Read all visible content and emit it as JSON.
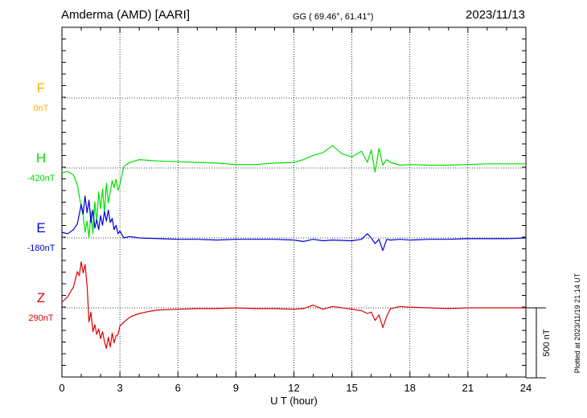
{
  "header": {
    "title": "Amderma (AMD)  [AARI]",
    "coords": "GG ( 69.46°,  61.41°)",
    "date": "2023/11/13"
  },
  "footer": {
    "plotted": "Plotted at 2023/11/19 21:14 UT"
  },
  "chart_data": {
    "type": "line",
    "xlabel": "U T (hour)",
    "xlim": [
      0,
      24
    ],
    "xticks": [
      "0",
      "3",
      "6",
      "9",
      "12",
      "15",
      "18",
      "21",
      "24"
    ],
    "grid": true,
    "scale_bar": "500 nT",
    "scale_nT": 500,
    "series": [
      {
        "name": "F",
        "baseline": "0nT",
        "color": "#f0b400",
        "x": [],
        "y": []
      },
      {
        "name": "H",
        "baseline": "-420nT",
        "color": "#00e000",
        "x": [
          0,
          0.3,
          0.6,
          0.8,
          1.0,
          1.1,
          1.2,
          1.3,
          1.4,
          1.5,
          1.6,
          1.7,
          1.8,
          1.9,
          2.0,
          2.1,
          2.2,
          2.3,
          2.4,
          2.5,
          2.6,
          2.7,
          2.8,
          2.9,
          3.0,
          3.2,
          3.5,
          4.0,
          5.0,
          6.0,
          7.0,
          8.0,
          9.0,
          10.0,
          11.0,
          12.0,
          12.5,
          13.0,
          13.5,
          14.0,
          14.5,
          15.0,
          15.5,
          15.8,
          16.0,
          16.2,
          16.4,
          16.6,
          16.8,
          17.0,
          17.5,
          18.0,
          19.0,
          20.0,
          21.0,
          22.0,
          23.0,
          24.0
        ],
        "y": [
          -35,
          -25,
          -50,
          -120,
          -280,
          -340,
          -460,
          -380,
          -500,
          -310,
          -470,
          -240,
          -390,
          -170,
          -290,
          -150,
          -320,
          -110,
          -250,
          -170,
          -90,
          -140,
          -80,
          -160,
          -120,
          10,
          40,
          60,
          50,
          45,
          40,
          35,
          25,
          25,
          35,
          40,
          60,
          90,
          110,
          160,
          100,
          80,
          120,
          40,
          130,
          -30,
          140,
          20,
          60,
          40,
          20,
          25,
          20,
          20,
          25,
          30,
          30,
          30
        ]
      },
      {
        "name": "E",
        "baseline": "-180nT",
        "color": "#0000e0",
        "x": [
          0,
          0.3,
          0.6,
          0.8,
          0.9,
          1.0,
          1.1,
          1.2,
          1.3,
          1.4,
          1.5,
          1.6,
          1.7,
          1.8,
          1.9,
          2.0,
          2.1,
          2.2,
          2.3,
          2.4,
          2.5,
          2.6,
          2.7,
          2.8,
          2.9,
          3.0,
          3.2,
          3.5,
          4.0,
          5.0,
          6.0,
          7.0,
          8.0,
          9.0,
          10.0,
          11.0,
          12.0,
          12.5,
          13.0,
          13.5,
          14.0,
          15.0,
          15.5,
          15.8,
          16.0,
          16.2,
          16.4,
          16.6,
          16.8,
          17.0,
          17.5,
          18.0,
          19.0,
          20.0,
          21.0,
          22.0,
          23.0,
          24.0
        ],
        "y": [
          40,
          30,
          60,
          100,
          170,
          240,
          170,
          300,
          180,
          270,
          110,
          200,
          70,
          130,
          60,
          160,
          90,
          190,
          120,
          200,
          110,
          140,
          60,
          90,
          30,
          50,
          0,
          10,
          0,
          -5,
          -10,
          -10,
          -15,
          -10,
          -10,
          -10,
          -15,
          -25,
          -10,
          -20,
          -15,
          -20,
          -10,
          30,
          0,
          -40,
          -10,
          -90,
          -10,
          -15,
          -10,
          -15,
          -10,
          -10,
          -5,
          -5,
          -5,
          0
        ]
      },
      {
        "name": "Z",
        "baseline": "290nT",
        "color": "#e00000",
        "x": [
          0,
          0.3,
          0.6,
          0.8,
          0.9,
          1.0,
          1.1,
          1.2,
          1.3,
          1.4,
          1.5,
          1.6,
          1.7,
          1.8,
          1.9,
          2.0,
          2.1,
          2.2,
          2.3,
          2.4,
          2.5,
          2.6,
          2.7,
          2.8,
          2.9,
          3.0,
          3.3,
          3.6,
          4.0,
          4.5,
          5.0,
          6.0,
          7.0,
          8.0,
          9.0,
          10.0,
          11.0,
          12.0,
          12.5,
          13.0,
          13.5,
          14.0,
          15.0,
          15.5,
          15.8,
          16.0,
          16.2,
          16.4,
          16.6,
          16.8,
          17.0,
          17.5,
          18.0,
          19.0,
          20.0,
          21.0,
          22.0,
          23.0,
          24.0
        ],
        "y": [
          40,
          80,
          150,
          260,
          230,
          330,
          250,
          310,
          160,
          -100,
          -30,
          -170,
          -120,
          -190,
          -150,
          -220,
          -170,
          -240,
          -290,
          -210,
          -280,
          -180,
          -250,
          -200,
          -190,
          -130,
          -90,
          -60,
          -40,
          -25,
          -15,
          -10,
          -5,
          -5,
          0,
          -5,
          -5,
          -10,
          -5,
          20,
          -10,
          10,
          -10,
          -20,
          -40,
          -30,
          -90,
          -50,
          -140,
          -60,
          -5,
          10,
          5,
          0,
          -5,
          0,
          0,
          0,
          0
        ]
      }
    ]
  }
}
